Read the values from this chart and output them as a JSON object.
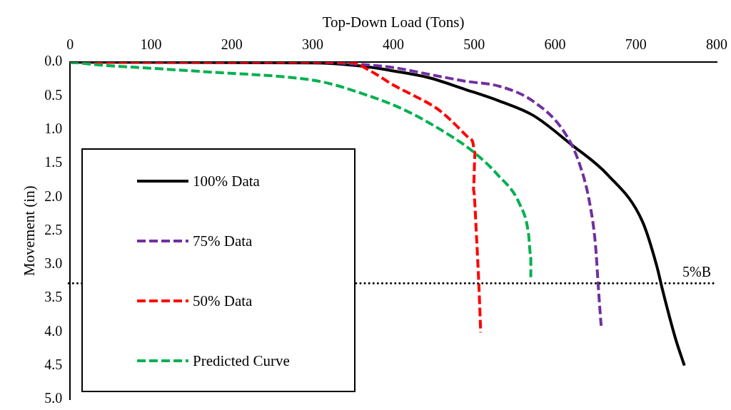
{
  "chart_data": {
    "type": "line",
    "xlabel": "Top-Down Load (Tons)",
    "ylabel": "Movement (in)",
    "xlim": [
      0,
      800
    ],
    "xticks": [
      0,
      100,
      200,
      300,
      400,
      500,
      600,
      700,
      800
    ],
    "ylim": [
      5,
      0
    ],
    "yticks": [
      {
        "value": 0,
        "label": "0.0"
      },
      {
        "value": 0.5,
        "label": "0.5"
      },
      {
        "value": 1,
        "label": "1.0"
      },
      {
        "value": 1.5,
        "label": "1.5"
      },
      {
        "value": 2,
        "label": "2.0"
      },
      {
        "value": 2.5,
        "label": "2.5"
      },
      {
        "value": 3,
        "label": "3.0"
      },
      {
        "value": 3.5,
        "label": "3.5"
      },
      {
        "value": 4,
        "label": "4.0"
      },
      {
        "value": 4.5,
        "label": "4.5"
      },
      {
        "value": 5,
        "label": "5.0"
      }
    ],
    "grid": false,
    "legend": "bottom left",
    "marker": "none",
    "series": [
      {
        "name": "100% Data",
        "color": "#000000",
        "line_style": "solid",
        "x": [
          0,
          300,
          355,
          400,
          444,
          488,
          532,
          573,
          620,
          665,
          708,
          726,
          733,
          749,
          760
        ],
        "values": [
          0,
          0.01,
          0.05,
          0.13,
          0.23,
          0.4,
          0.58,
          0.79,
          1.22,
          1.67,
          2.36,
          3.03,
          3.38,
          4.1,
          4.5
        ]
      },
      {
        "name": "75% Data",
        "color": "#7030a0",
        "line_style": "dashed",
        "x": [
          0,
          302,
          355,
          400,
          444,
          488,
          532,
          573,
          611,
          630,
          643,
          650,
          654,
          657
        ],
        "values": [
          0,
          0,
          0.03,
          0.08,
          0.18,
          0.28,
          0.36,
          0.58,
          1.03,
          1.5,
          2.1,
          2.71,
          3.42,
          3.91
        ]
      },
      {
        "name": "50% Data",
        "color": "#ff0000",
        "line_style": "dashed",
        "x": [
          0,
          302,
          346,
          373,
          400,
          426,
          453,
          470,
          492,
          498,
          501,
          499,
          503,
          506,
          508
        ],
        "values": [
          0,
          0,
          0,
          0.14,
          0.34,
          0.5,
          0.68,
          0.85,
          1.11,
          1.18,
          1.35,
          1.89,
          2.63,
          3.38,
          4.01
        ]
      },
      {
        "name": "Predicted Curve",
        "color": "#00b050",
        "line_style": "dashed",
        "x": [
          0,
          46,
          100,
          178,
          267,
          311,
          355,
          414,
          473,
          501,
          529,
          556,
          567,
          570,
          570
        ],
        "values": [
          0,
          0.05,
          0.09,
          0.15,
          0.22,
          0.29,
          0.44,
          0.71,
          1.11,
          1.35,
          1.67,
          2.1,
          2.53,
          2.89,
          3.19
        ]
      }
    ],
    "ref_lines": [
      {
        "axis": "y",
        "value": 3.28,
        "label": "5%B",
        "color": "#000000",
        "line_style": "dotted"
      }
    ]
  }
}
